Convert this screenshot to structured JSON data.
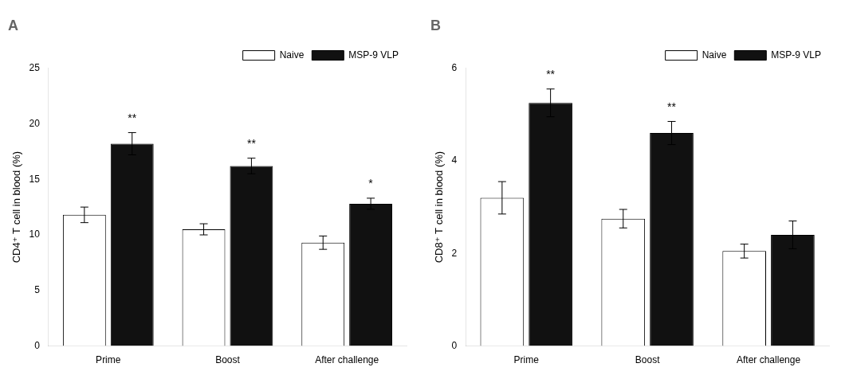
{
  "chart_data": [
    {
      "type": "bar",
      "title": "A",
      "y_label": "CD4⁺ T cell in blood (%)",
      "categories": [
        "Prime",
        "Boost",
        "After challenge"
      ],
      "series": [
        {
          "name": "Naive",
          "color": "#ffffff",
          "values": [
            11.8,
            10.5,
            9.3
          ],
          "errors": [
            0.7,
            0.5,
            0.6
          ]
        },
        {
          "name": "MSP-9 VLP",
          "color": "#111111",
          "values": [
            18.2,
            16.2,
            12.8
          ],
          "errors": [
            1.0,
            0.7,
            0.5
          ]
        }
      ],
      "annotations": [
        {
          "text": "**",
          "category": "Prime",
          "series": "MSP-9 VLP"
        },
        {
          "text": "**",
          "category": "Boost",
          "series": "MSP-9 VLP"
        },
        {
          "text": "*",
          "category": "After challenge",
          "series": "MSP-9 VLP"
        }
      ],
      "ylim": [
        0,
        25
      ],
      "yticks": [
        0,
        5,
        10,
        15,
        20,
        25
      ],
      "grid": false,
      "legend": "upper right"
    },
    {
      "type": "bar",
      "title": "B",
      "y_label": "CD8⁺ T cell in blood (%)",
      "categories": [
        "Prime",
        "Boost",
        "After challenge"
      ],
      "series": [
        {
          "name": "Naive",
          "color": "#ffffff",
          "values": [
            3.2,
            2.75,
            2.05
          ],
          "errors": [
            0.35,
            0.2,
            0.15
          ]
        },
        {
          "name": "MSP-9 VLP",
          "color": "#111111",
          "values": [
            5.25,
            4.6,
            2.4
          ],
          "errors": [
            0.3,
            0.25,
            0.3
          ]
        }
      ],
      "annotations": [
        {
          "text": "**",
          "category": "Prime",
          "series": "MSP-9 VLP"
        },
        {
          "text": "**",
          "category": "Boost",
          "series": "MSP-9 VLP"
        }
      ],
      "ylim": [
        0,
        6
      ],
      "yticks": [
        0,
        2,
        4,
        6
      ],
      "grid": false,
      "legend": "upper right"
    }
  ]
}
